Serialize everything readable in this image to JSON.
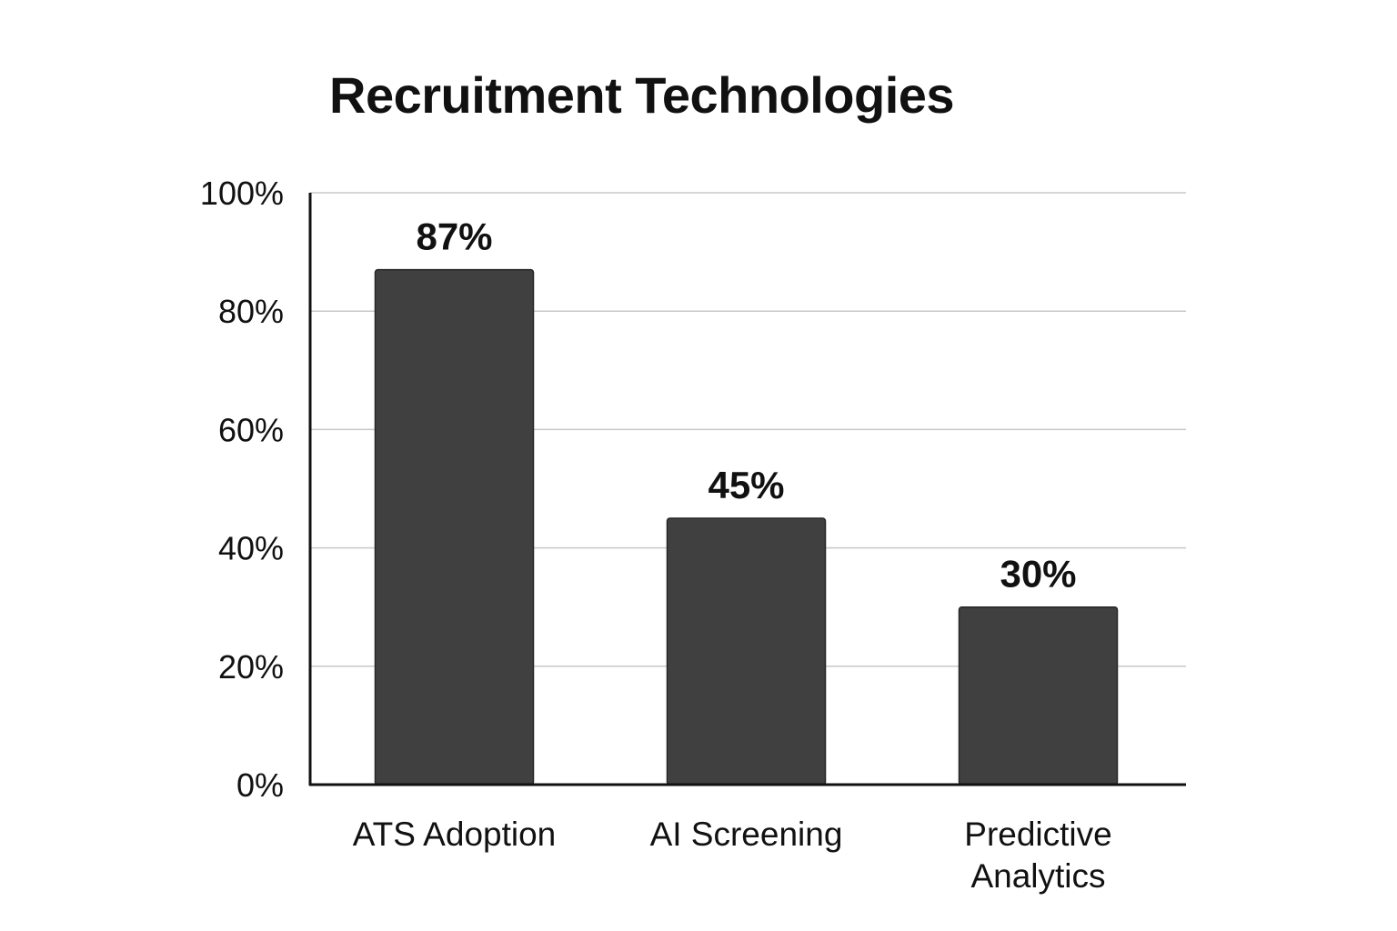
{
  "chart_data": {
    "type": "bar",
    "title": "Recruitment Technologies",
    "xlabel": "",
    "ylabel": "",
    "categories": [
      [
        "ATS Adoption"
      ],
      [
        "AI Screening"
      ],
      [
        "Predictive",
        "Analytics"
      ]
    ],
    "values": [
      87,
      45,
      30
    ],
    "data_labels": [
      "87%",
      "45%",
      "30%"
    ],
    "ylim": [
      0,
      100
    ],
    "yticks": [
      0,
      20,
      40,
      60,
      80,
      100
    ],
    "ytick_labels": [
      "0%",
      "20%",
      "40%",
      "60%",
      "80%",
      "100%"
    ],
    "grid": true,
    "legend": "none",
    "colors": {
      "bar": "#404040",
      "bar_outline": "#262626",
      "grid": "#c8c8c8",
      "axis": "#111111",
      "text": "#111111"
    }
  }
}
